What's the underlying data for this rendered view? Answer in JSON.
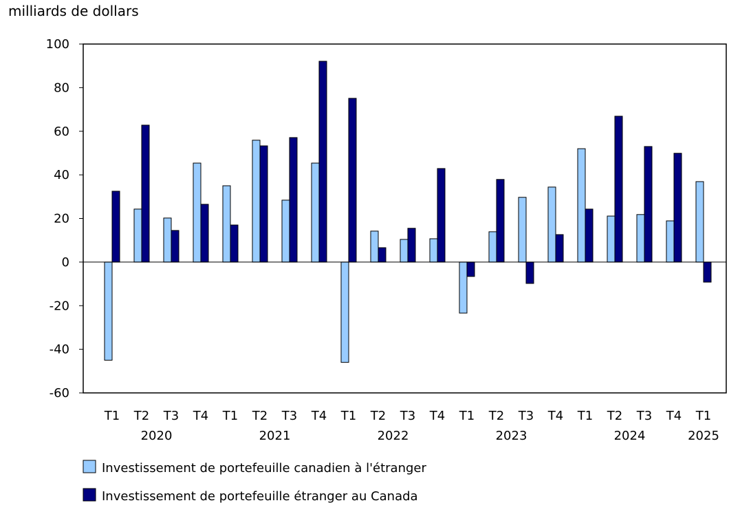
{
  "chart_data": {
    "type": "bar",
    "ylabel": "milliards de dollars",
    "ylim": [
      -60,
      100
    ],
    "yticks": [
      100,
      80,
      60,
      40,
      20,
      0,
      -20,
      -40,
      -60
    ],
    "grid": false,
    "legend_position": "bottom-left",
    "categories": [
      "T1",
      "T2",
      "T3",
      "T4",
      "T1",
      "T2",
      "T3",
      "T4",
      "T1",
      "T2",
      "T3",
      "T4",
      "T1",
      "T2",
      "T3",
      "T4",
      "T1",
      "T2",
      "T3",
      "T4",
      "T1"
    ],
    "years": [
      {
        "label": "2020",
        "start": 0,
        "end": 3
      },
      {
        "label": "2021",
        "start": 4,
        "end": 7
      },
      {
        "label": "2022",
        "start": 8,
        "end": 11
      },
      {
        "label": "2023",
        "start": 12,
        "end": 15
      },
      {
        "label": "2024",
        "start": 16,
        "end": 19
      },
      {
        "label": "2025",
        "start": 20,
        "end": 20
      }
    ],
    "series": [
      {
        "name": "Investissement de portefeuille canadien à l'étranger",
        "color": "#99ccff",
        "values": [
          -45,
          24.3,
          20.2,
          45.4,
          35,
          55.9,
          28.4,
          45.4,
          -46,
          14.2,
          10.4,
          10.7,
          -23.4,
          13.9,
          29.7,
          34.4,
          52,
          21.1,
          21.8,
          18.9,
          36.9
        ]
      },
      {
        "name": "Investissement de portefeuille étranger au Canada",
        "color": "#000080",
        "values": [
          32.5,
          62.8,
          14.5,
          26.5,
          17,
          53.3,
          57.1,
          92.1,
          75.1,
          6.6,
          15.5,
          42.9,
          -6.6,
          37.9,
          -9.8,
          12.6,
          24.3,
          66.9,
          53,
          49.9,
          -9.2
        ]
      }
    ]
  }
}
